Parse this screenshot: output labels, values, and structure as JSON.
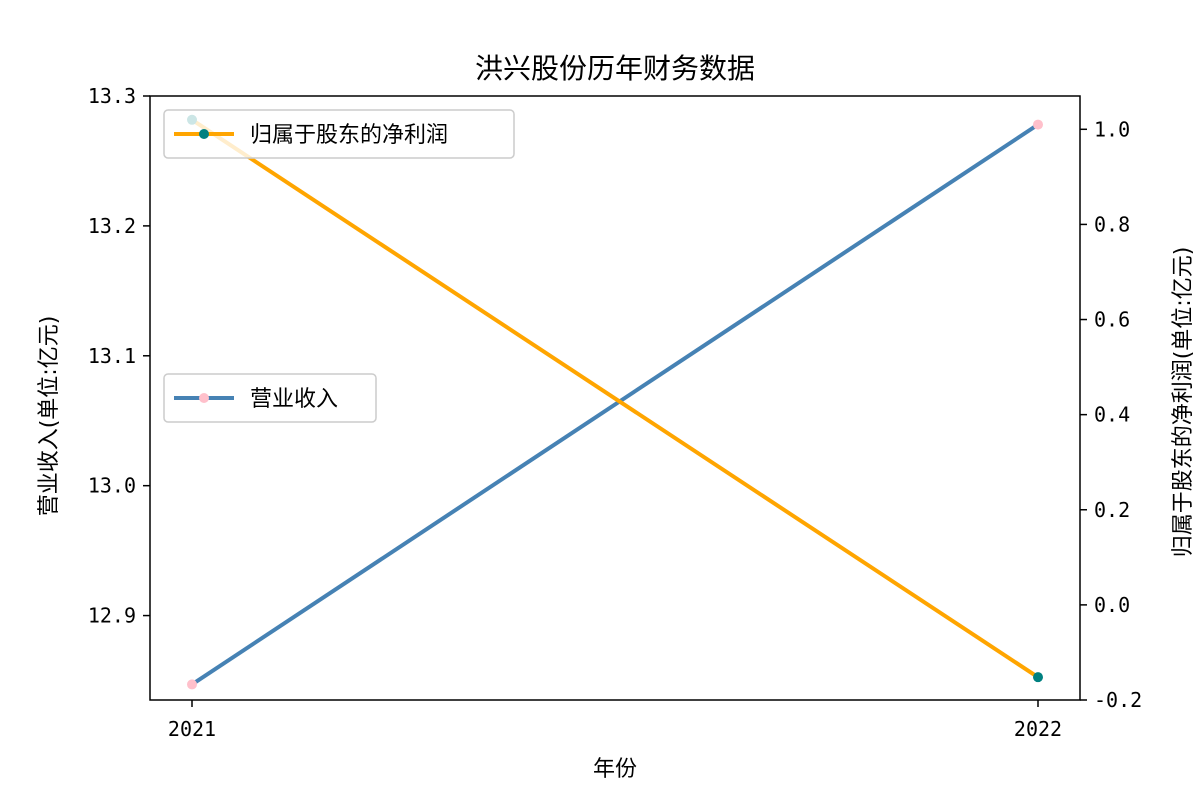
{
  "chart_data": {
    "type": "line",
    "title": "洪兴股份历年财务数据",
    "xlabel": "年份",
    "ylabel_left": "营业收入(单位:亿元)",
    "ylabel_right": "归属于股东的净利润(单位:亿元)",
    "x": [
      "2021",
      "2022"
    ],
    "ylim_left": [
      12.835,
      13.3
    ],
    "ylim_right": [
      -0.2,
      1.07
    ],
    "yticks_left": [
      "12.9",
      "13.0",
      "13.1",
      "13.2",
      "13.3"
    ],
    "yticks_right": [
      "-0.2",
      "0.0",
      "0.2",
      "0.4",
      "0.6",
      "0.8",
      "1.0"
    ],
    "series": [
      {
        "name": "营业收入",
        "axis": "left",
        "values": [
          12.847,
          13.278
        ],
        "color": "#4682b4",
        "marker_color": "#ffc0cb",
        "legend_position": "center-left"
      },
      {
        "name": "归属于股东的净利润",
        "axis": "right",
        "values": [
          1.02,
          -0.152
        ],
        "color": "#ffa500",
        "marker_color": "#008080",
        "legend_position": "upper-left"
      }
    ],
    "grid": false
  }
}
